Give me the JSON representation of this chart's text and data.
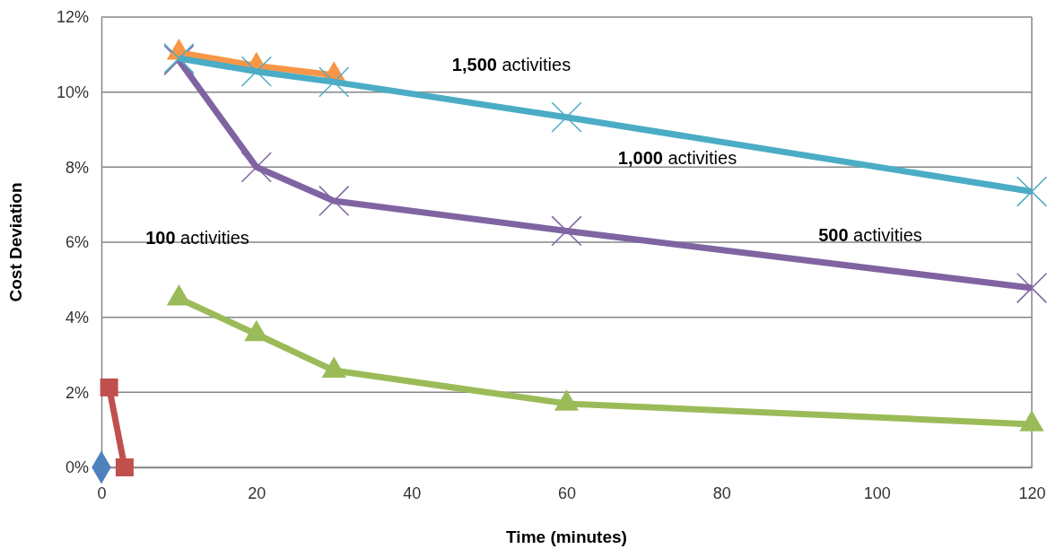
{
  "chart_data": {
    "type": "line",
    "xlabel": "Time (minutes)",
    "ylabel": "Cost Deviation",
    "xlim": [
      0,
      120
    ],
    "xticks": [
      0,
      20,
      40,
      60,
      80,
      100,
      120
    ],
    "ylim": [
      0,
      12
    ],
    "yticks": [
      {
        "value": 0,
        "label": "0%"
      },
      {
        "value": 2,
        "label": "2%"
      },
      {
        "value": 4,
        "label": "4%"
      },
      {
        "value": 6,
        "label": "6%"
      },
      {
        "value": 8,
        "label": "8%"
      },
      {
        "value": 10,
        "label": "10%"
      },
      {
        "value": 12,
        "label": "12%"
      }
    ],
    "grid": "y",
    "line_style": "solid",
    "series": [
      {
        "color": "#4f81bd",
        "marker": "diamond",
        "x": [
          0
        ],
        "values": [
          0
        ]
      },
      {
        "color": "#c0504d",
        "marker": "square",
        "x": [
          1,
          3
        ],
        "values": [
          2.13,
          0
        ]
      },
      {
        "color": "#9bbb59",
        "marker": "triangle",
        "x": [
          10,
          20,
          30,
          60,
          120
        ],
        "values": [
          4.5,
          3.55,
          2.58,
          1.7,
          1.15
        ]
      },
      {
        "color": "#8064a2",
        "marker": "cross",
        "x": [
          10,
          20,
          30,
          60,
          120
        ],
        "values": [
          10.85,
          8.0,
          7.1,
          6.3,
          4.78
        ]
      },
      {
        "color": "#f79646",
        "marker": "triangle",
        "x": [
          10,
          20,
          30
        ],
        "values": [
          11.05,
          10.7,
          10.45
        ]
      },
      {
        "color": "#4bacc6",
        "marker": "cross",
        "x": [
          10,
          20,
          30,
          60,
          120
        ],
        "values": [
          10.9,
          10.55,
          10.27,
          9.33,
          7.35
        ]
      }
    ],
    "annotations": [
      "1,500 activities",
      "1,000 activities",
      "500 activities",
      "100 activities"
    ]
  }
}
